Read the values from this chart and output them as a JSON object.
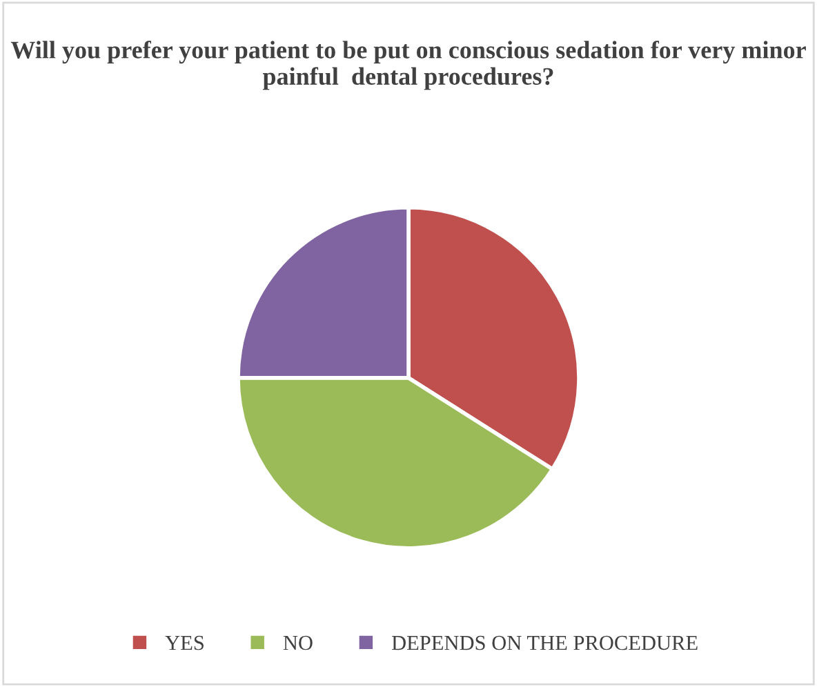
{
  "chart_data": {
    "type": "pie",
    "title": "Will you prefer your patient to be put on conscious sedation for very minor painful  dental procedures?",
    "categories": [
      "YES",
      "NO",
      "DEPENDS ON THE PROCEDURE"
    ],
    "values": [
      34,
      41,
      25
    ],
    "colors": [
      "#c0504d",
      "#9bbb59",
      "#8064a2"
    ],
    "legend": "bottom"
  }
}
